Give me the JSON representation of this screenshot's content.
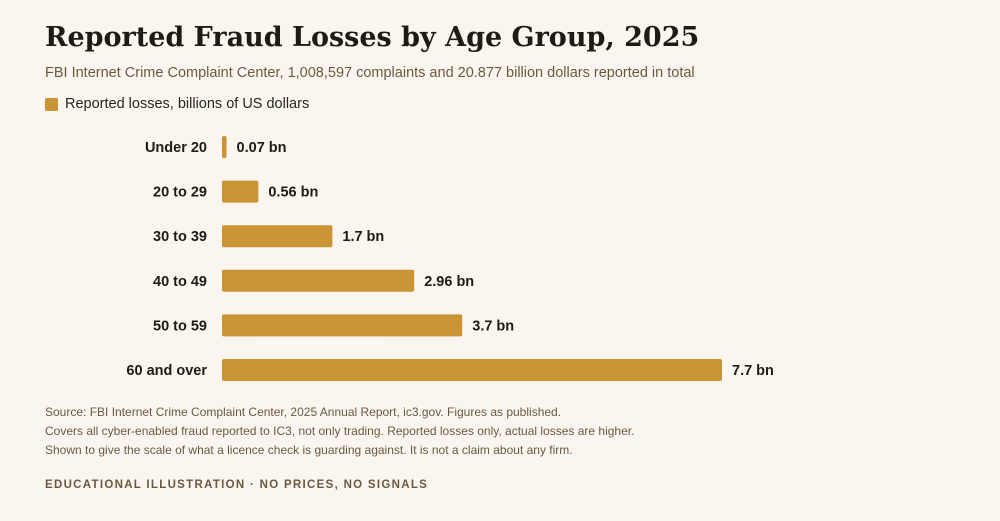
{
  "header": {
    "title": "Reported Fraud Losses by Age Group, 2025",
    "subtitle": "FBI Internet Crime Complaint Center, 1,008,597 complaints and 20.877 billion dollars reported in total"
  },
  "colors": {
    "bar": "#c99433",
    "label": "#1f1a14",
    "muted": "#6b5842",
    "background": "#faf6ef"
  },
  "chart_data": {
    "type": "bar",
    "orientation": "horizontal",
    "categories": [
      "Under 20",
      "20 to 29",
      "30 to 39",
      "40 to 49",
      "50 to 59",
      "60 and over"
    ],
    "series": [
      {
        "name": "Reported losses, billions of US dollars",
        "values": [
          0.07,
          0.56,
          1.7,
          2.96,
          3.7,
          7.7
        ],
        "value_labels": [
          "0.07 bn",
          "0.56 bn",
          "1.7 bn",
          "2.96 bn",
          "3.7 bn",
          "7.7 bn"
        ]
      }
    ],
    "title": "Reported Fraud Losses by Age Group, 2025",
    "xlabel": "",
    "ylabel": "",
    "xlim": [
      0,
      7.7
    ],
    "grid": false,
    "legend": "top-left"
  },
  "footnotes": [
    "Source: FBI Internet Crime Complaint Center, 2025 Annual Report, ic3.gov. Figures as published.",
    "Covers all cyber-enabled fraud reported to IC3, not only trading. Reported losses only, actual losses are higher.",
    "Shown to give the scale of what a licence check is guarding against. It is not a claim about any firm."
  ],
  "badge": "EDUCATIONAL ILLUSTRATION · NO PRICES, NO SIGNALS"
}
